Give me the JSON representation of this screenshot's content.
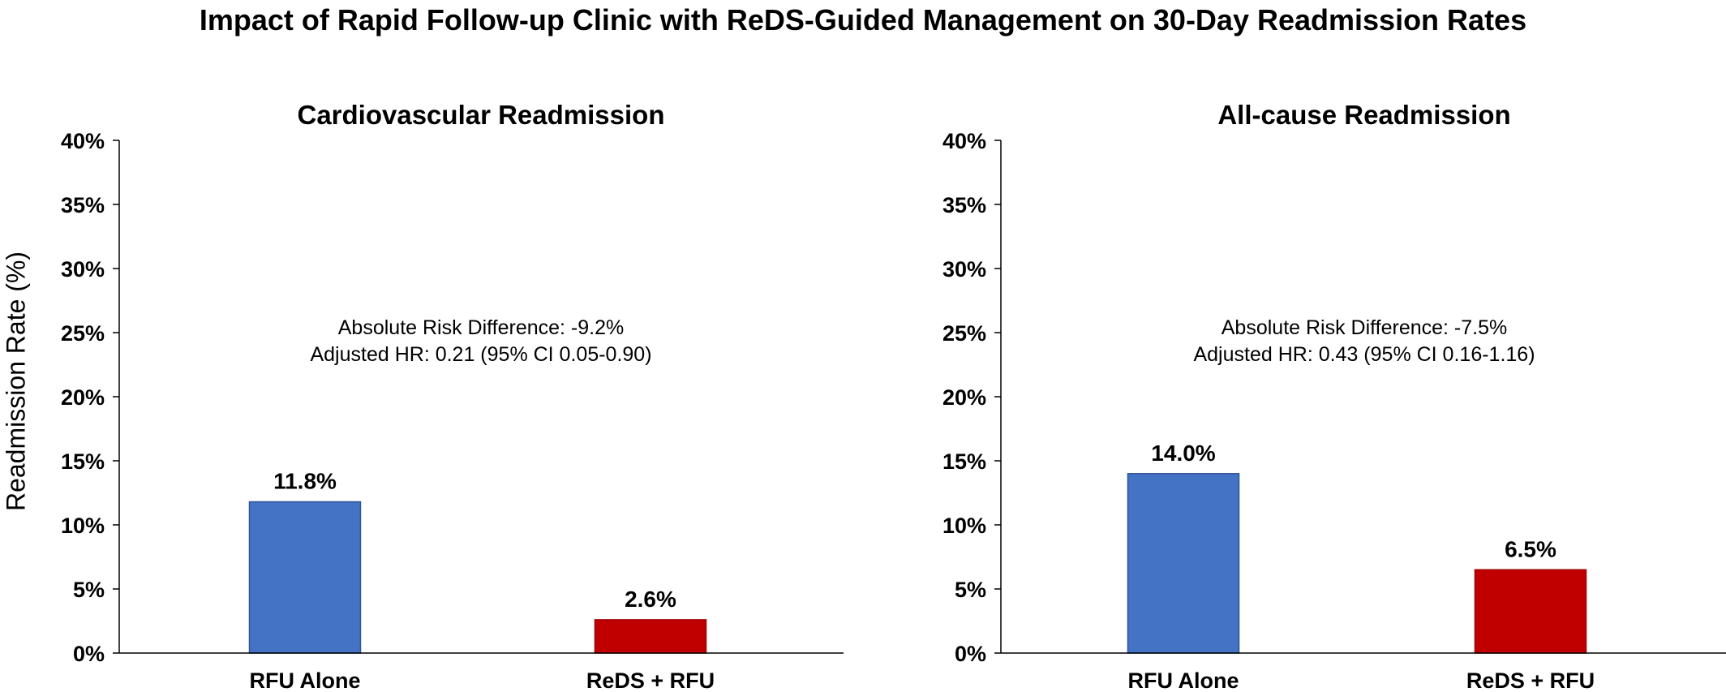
{
  "title": "Impact of Rapid Follow-up Clinic with ReDS-Guided Management on 30-Day Readmission Rates",
  "y_axis_title": "Readmission Rate (%)",
  "colors": {
    "rfu_alone": "#4472C4",
    "reds_rfu": "#C00000",
    "rfu_alone_edge": "#2F5597",
    "reds_rfu_edge": "#A00000",
    "axis": "#000000"
  },
  "chart_data": [
    {
      "type": "bar",
      "title": "Cardiovascular Readmission",
      "categories": [
        "RFU Alone",
        "ReDS + RFU"
      ],
      "values": [
        11.8,
        2.6
      ],
      "value_labels": [
        "11.8%",
        "2.6%"
      ],
      "ylim": [
        0,
        40
      ],
      "y_ticks": [
        0,
        5,
        10,
        15,
        20,
        25,
        30,
        35,
        40
      ],
      "y_tick_labels": [
        "0%",
        "5%",
        "10%",
        "15%",
        "20%",
        "25%",
        "30%",
        "35%",
        "40%"
      ],
      "ylabel": "Readmission Rate (%)",
      "grid": false,
      "annotations": [
        "Absolute Risk Difference: -9.2%",
        "Adjusted HR: 0.21 (95% CI 0.05-0.90)"
      ]
    },
    {
      "type": "bar",
      "title": "All-cause Readmission",
      "categories": [
        "RFU Alone",
        "ReDS + RFU"
      ],
      "values": [
        14.0,
        6.5
      ],
      "value_labels": [
        "14.0%",
        "6.5%"
      ],
      "ylim": [
        0,
        40
      ],
      "y_ticks": [
        0,
        5,
        10,
        15,
        20,
        25,
        30,
        35,
        40
      ],
      "y_tick_labels": [
        "0%",
        "5%",
        "10%",
        "15%",
        "20%",
        "25%",
        "30%",
        "35%",
        "40%"
      ],
      "grid": false,
      "annotations": [
        "Absolute Risk Difference: -7.5%",
        "Adjusted HR: 0.43 (95% CI 0.16-1.16)"
      ]
    }
  ]
}
